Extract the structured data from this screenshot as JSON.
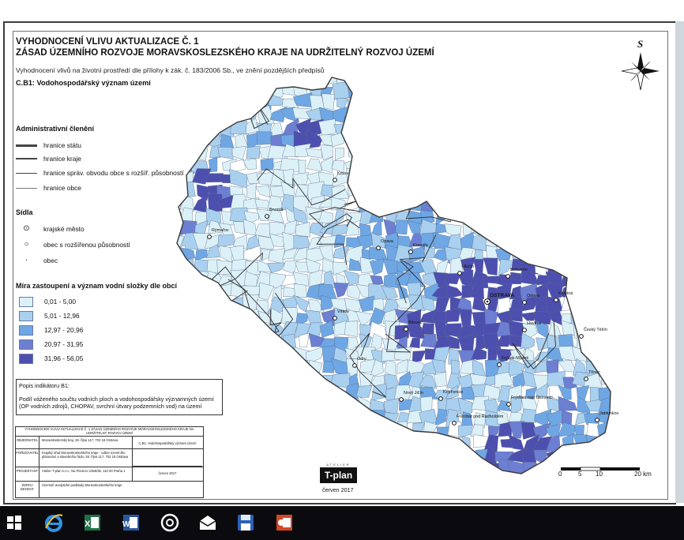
{
  "title_line1": "VYHODNOCENÍ VLIVU AKTUALIZACE Č. 1",
  "title_line2": "ZÁSAD ÚZEMNÍHO ROZVOJE MORAVSKOSLEZSKÉHO KRAJE NA UDRŽITELNÝ ROZVOJ ÚZEMÍ",
  "subtitle": "Vyhodnocení vlivů na životní prostředí dle přílohy k zák. č. 183/2006 Sb., ve znění pozdějších předpisů",
  "map_title": "C.B1: Vodohospodářský význam území",
  "north_label": "S",
  "legend": {
    "admin_heading": "Administrativní členění",
    "admin_items": [
      "hranice státu",
      "hranice kraje",
      "hranice správ. obvodu obce s rozšíř. působností",
      "hranice obce"
    ],
    "settlement_heading": "Sídla",
    "settlement_items": [
      "krajské město",
      "obec s rozšířenou působností",
      "obec"
    ],
    "water_heading": "Míra zastoupení a význam vodní složky dle obcí",
    "classes": [
      {
        "label": "0,01 - 5,00",
        "color": "#dcf1f7"
      },
      {
        "label": "5,01 - 12,96",
        "color": "#a9d0ee"
      },
      {
        "label": "12,97 - 20,96",
        "color": "#6ea7e4"
      },
      {
        "label": "20,97 - 31,95",
        "color": "#6c7fd2"
      },
      {
        "label": "31,96 - 56,05",
        "color": "#4d4fae"
      }
    ]
  },
  "indicator": {
    "heading": "Popis indikátoru B1:",
    "text": "Podíl váženého součtu vodních ploch a vodohospodářsky významných území (OP vodních zdrojů, CHOPAV, svrchní útvary podzemních vod) na území"
  },
  "info_table": {
    "header": "VYHODNOCENÍ VLIVU AKTUALIZACE Č. 1 ZÁSAD ÚZEMNÍHO ROZVOJE MORAVSKOSLEZSKÉHO KRAJE NA UDRŽITELNÝ ROZVOJ ÚZEMÍ",
    "rows": [
      {
        "key": "OBJEDNATEL",
        "value": "Moravskoslezský kraj, 28. října 117, 702 18 Ostrava"
      },
      {
        "key": "POŘIZOVATEL",
        "value": "Krajský úřad Moravskoslezského kraje - odbor územního plánování a stavebního řádu, 28. října 117, 702 18 Ostrava"
      },
      {
        "key": "PROJEKTANT",
        "value": "Atelier T-plan s.r.o., Na Florenci 1055/35, 110 00 Praha 1"
      },
      {
        "key": "ZDROJ DEODAT",
        "value": "Územně analytické podklady Moravskoslezského kraje"
      }
    ],
    "side_title": "C.B1: Vodohospodářský význam území",
    "side_date": "červen 2017"
  },
  "logo_text": "T-plan",
  "logo_caption": "ATELIER",
  "date": "červen 2017",
  "scale": {
    "labels": [
      "0",
      "5",
      "10",
      "20 km"
    ]
  },
  "towns": [
    {
      "name": "Krnov",
      "type": "orp"
    },
    {
      "name": "Bruntál",
      "type": "orp"
    },
    {
      "name": "Rýmařov",
      "type": "orp"
    },
    {
      "name": "Opava",
      "type": "orp"
    },
    {
      "name": "Kravaře",
      "type": "orp"
    },
    {
      "name": "Hlučín",
      "type": "orp"
    },
    {
      "name": "Bohumín",
      "type": "orp"
    },
    {
      "name": "OSTRAVA",
      "type": "kraj"
    },
    {
      "name": "Orlová",
      "type": "orp"
    },
    {
      "name": "Karviná",
      "type": "orp"
    },
    {
      "name": "Havířov",
      "type": "orp"
    },
    {
      "name": "Vítkov",
      "type": "orp"
    },
    {
      "name": "Bílovec",
      "type": "orp"
    },
    {
      "name": "Český Těšín",
      "type": "orp"
    },
    {
      "name": "Třinec",
      "type": "orp"
    },
    {
      "name": "Odry",
      "type": "orp"
    },
    {
      "name": "Frýdek-Místek",
      "type": "orp"
    },
    {
      "name": "Nový Jičín",
      "type": "orp"
    },
    {
      "name": "Kopřivnice",
      "type": "orp"
    },
    {
      "name": "Frýdlant nad Ostravicí",
      "type": "orp"
    },
    {
      "name": "Frenštát pod Radhoštěm",
      "type": "orp"
    },
    {
      "name": "Jablunkov",
      "type": "orp"
    }
  ]
}
